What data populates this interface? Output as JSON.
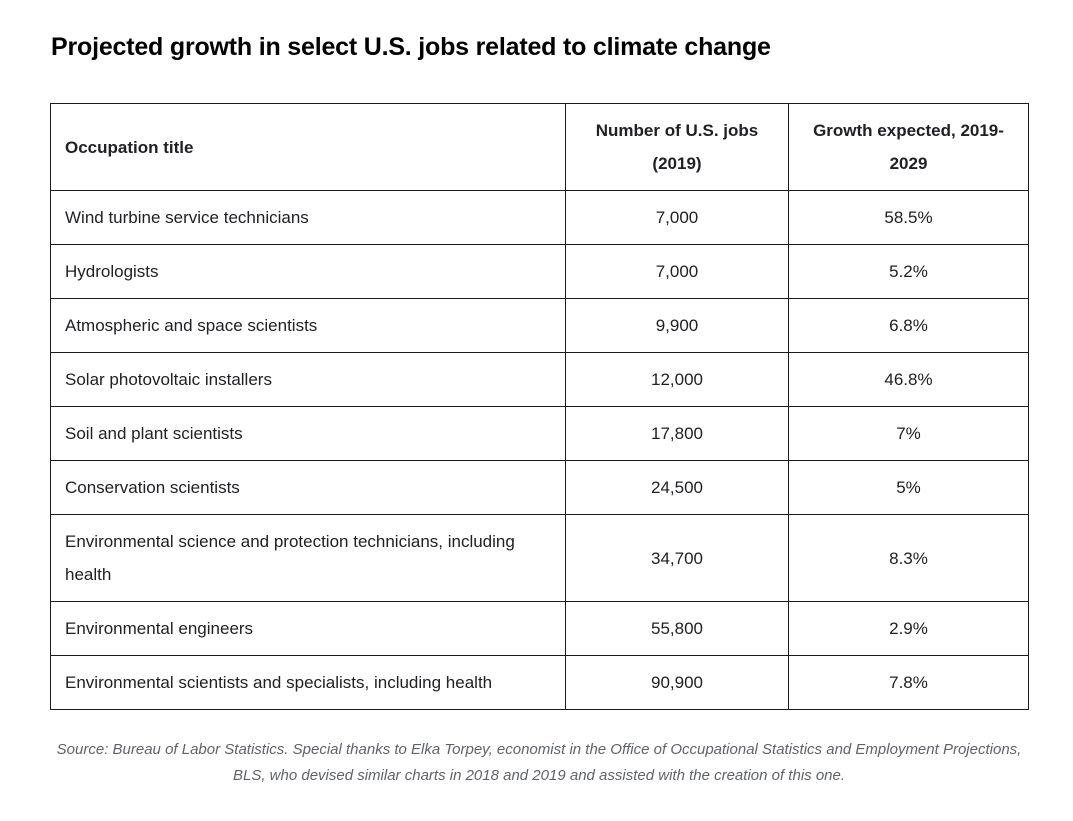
{
  "chart_data": {
    "type": "table",
    "title": "Projected growth in select U.S. jobs related to climate change",
    "columns": [
      "Occupation title",
      "Number of U.S. jobs (2019)",
      "Growth expected, 2019-2029"
    ],
    "rows": [
      [
        "Wind turbine service technicians",
        "7,000",
        "58.5%"
      ],
      [
        "Hydrologists",
        "7,000",
        "5.2%"
      ],
      [
        "Atmospheric and space scientists",
        "9,900",
        "6.8%"
      ],
      [
        "Solar photovoltaic installers",
        "12,000",
        "46.8%"
      ],
      [
        "Soil and plant scientists",
        "17,800",
        "7%"
      ],
      [
        "Conservation scientists",
        "24,500",
        "5%"
      ],
      [
        "Environmental science and protection technicians, including health",
        "34,700",
        "8.3%"
      ],
      [
        "Environmental engineers",
        "55,800",
        "2.9%"
      ],
      [
        "Environmental scientists and specialists, including health",
        "90,900",
        "7.8%"
      ]
    ],
    "jobs_numeric_2019": [
      7000,
      7000,
      9900,
      12000,
      17800,
      24500,
      34700,
      55800,
      90900
    ],
    "growth_percent_2019_2029": [
      58.5,
      5.2,
      6.8,
      46.8,
      7,
      5,
      8.3,
      2.9,
      7.8
    ],
    "source_note": "Source: Bureau of Labor Statistics. Special thanks to Elka Torpey, economist in the Office of Occupational Statistics and Employment Projections, BLS, who devised similar charts in 2018 and 2019 and assisted with the creation of this one."
  },
  "colors": {
    "background": "#ffffff",
    "title_text": "#000000",
    "body_text": "#202124",
    "table_border": "#1b1b1b",
    "source_text": "#5f6368"
  }
}
